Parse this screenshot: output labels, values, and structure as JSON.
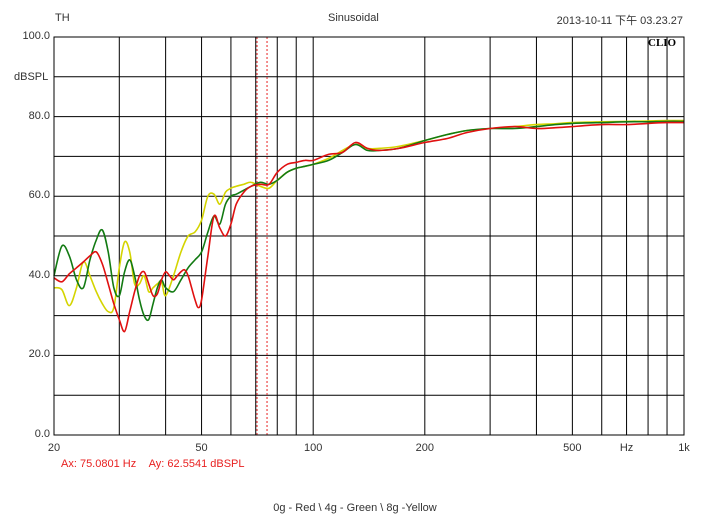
{
  "header": {
    "left": "TH",
    "center": "Sinusoidal",
    "right": "2013-10-11 下午 03.23.27"
  },
  "brand": "CLIO",
  "cursor": {
    "ax_label": "Ax: 75.0801 Hz",
    "ay_label": "Ay: 62.5541 dBSPL",
    "ax_value": 75.0801,
    "ay_value": 62.5541
  },
  "legend_text": "0g - Red \\ 4g - Green \\ 8g -Yellow",
  "chart_data": {
    "type": "line",
    "ylabel": "dBSPL",
    "x_scale": "log",
    "xlim": [
      20,
      1000
    ],
    "ylim": [
      0,
      100
    ],
    "grid": true,
    "y_ticks": [
      "100.0",
      "80.0",
      "60.0",
      "40.0",
      "20.0",
      "0.0"
    ],
    "y_tick_values": [
      100,
      80,
      60,
      40,
      20,
      0
    ],
    "x_ticks": [
      "20",
      "50",
      "100",
      "200",
      "500",
      "Hz",
      "1k"
    ],
    "x_tick_values": [
      20,
      50,
      100,
      200,
      500,
      700,
      1000
    ],
    "series": [
      {
        "name": "0g - Red",
        "color": "#e01010",
        "x": [
          20,
          21,
          22,
          23,
          24,
          25,
          26,
          27,
          28,
          29,
          30,
          31,
          32,
          33,
          34,
          35,
          36,
          37,
          38,
          39,
          40,
          41,
          42,
          43,
          44,
          45,
          46,
          47,
          48,
          49,
          50,
          52,
          54,
          56,
          58,
          60,
          62,
          65,
          68,
          72,
          76,
          80,
          85,
          90,
          95,
          100,
          110,
          120,
          130,
          140,
          150,
          170,
          200,
          230,
          260,
          300,
          350,
          400,
          450,
          500,
          600,
          700,
          800,
          900,
          1000
        ],
        "y": [
          39.5,
          38.5,
          40.5,
          42,
          43.5,
          45,
          46,
          43,
          38,
          33,
          29,
          26,
          31,
          36,
          40,
          41,
          38,
          35,
          35.5,
          39,
          41,
          40,
          39,
          40,
          41,
          41.5,
          40,
          37,
          34,
          32,
          34,
          45,
          55,
          52,
          50,
          53,
          58,
          61,
          62.5,
          63,
          63,
          66,
          68,
          68.5,
          69,
          69,
          70.5,
          71,
          73.5,
          72,
          71.5,
          72,
          73.5,
          74.5,
          76,
          77,
          77.5,
          77,
          77.2,
          77.5,
          78,
          78,
          78.3,
          78.5,
          78.5
        ]
      },
      {
        "name": "4g - Green",
        "color": "#127a12",
        "x": [
          20,
          21,
          22,
          23,
          24,
          25,
          26,
          27,
          28,
          29,
          30,
          31,
          32,
          33,
          34,
          35,
          36,
          37,
          38,
          39,
          40,
          42,
          44,
          46,
          48,
          50,
          52,
          54,
          56,
          58,
          60,
          62,
          65,
          68,
          72,
          76,
          80,
          85,
          90,
          95,
          100,
          110,
          120,
          130,
          140,
          150,
          170,
          200,
          230,
          260,
          300,
          350,
          400,
          450,
          500,
          600,
          700,
          800,
          900,
          1000
        ],
        "y": [
          40,
          47.5,
          45,
          39,
          37,
          44,
          49,
          51.5,
          46,
          37,
          35,
          41,
          44,
          40,
          34,
          30,
          29,
          33,
          37,
          39,
          37,
          36,
          39,
          42,
          44,
          46,
          51,
          55,
          53,
          58,
          60,
          60.5,
          61.5,
          62.5,
          63.5,
          63,
          64,
          66,
          67,
          67.5,
          68,
          69,
          71,
          73,
          71.5,
          71.5,
          72,
          74,
          75.5,
          76.5,
          77,
          77,
          77.5,
          78,
          78.3,
          78.5,
          78.7,
          78.7,
          78.8,
          78.8
        ]
      },
      {
        "name": "8g - Yellow",
        "color": "#d4d400",
        "x": [
          20,
          21,
          22,
          23,
          24,
          25,
          26,
          27,
          28,
          29,
          30,
          31,
          32,
          33,
          34,
          35,
          36,
          37,
          38,
          39,
          40,
          42,
          44,
          46,
          48,
          50,
          52,
          54,
          56,
          58,
          60,
          62,
          65,
          68,
          72,
          76,
          80,
          85,
          90,
          95,
          100,
          110,
          120,
          130,
          140,
          150,
          170,
          200,
          230,
          260,
          300,
          350,
          400,
          450,
          500,
          600,
          700,
          800,
          900,
          1000
        ],
        "y": [
          37,
          36.5,
          32.5,
          37,
          43.5,
          40,
          36,
          33,
          31,
          32,
          42,
          48.5,
          46,
          38,
          38,
          40,
          36,
          37,
          38,
          38.5,
          35,
          40,
          46,
          50,
          51,
          54,
          60,
          60.5,
          58,
          61,
          62,
          62.5,
          63,
          63.5,
          62.5,
          62,
          64,
          66,
          67,
          67.5,
          68,
          69.5,
          71.5,
          73,
          72,
          72,
          72.5,
          74,
          75.5,
          76.5,
          77,
          77.5,
          78,
          78.2,
          78.5,
          78.7,
          78.8,
          78.9,
          79,
          79
        ]
      }
    ]
  }
}
